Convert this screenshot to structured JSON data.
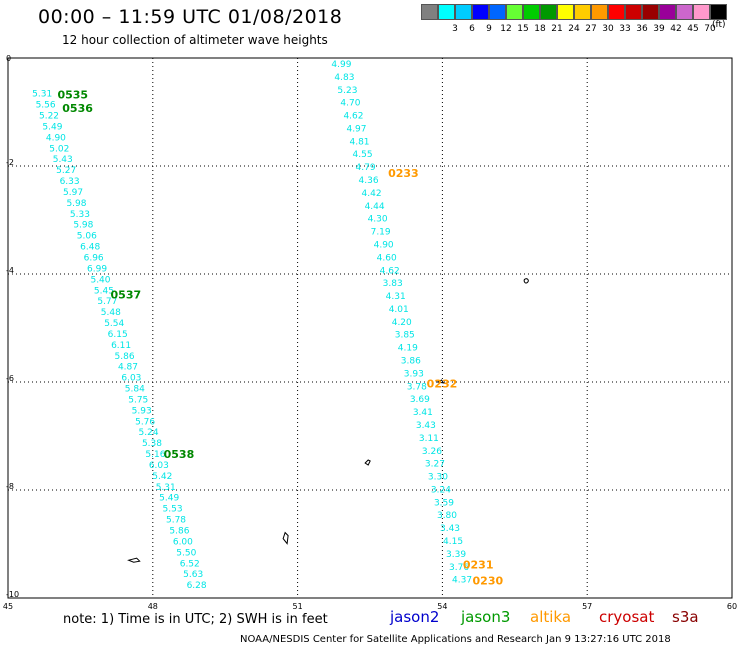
{
  "header": {
    "title": "00:00 – 11:59 UTC 01/08/2018",
    "subtitle": "12 hour collection of altimeter wave heights"
  },
  "legend": {
    "units": "(ft)",
    "colors": [
      "#808080",
      "#00ffff",
      "#00ccff",
      "#0000ff",
      "#0066ff",
      "#66ff33",
      "#00cc00",
      "#009900",
      "#ffff00",
      "#ffcc00",
      "#ff9900",
      "#ff0000",
      "#cc0000",
      "#990000",
      "#990099",
      "#cc66cc",
      "#ff99cc",
      "#000000"
    ],
    "labels": [
      "3",
      "6",
      "9",
      "12",
      "15",
      "18",
      "21",
      "24",
      "27",
      "30",
      "33",
      "36",
      "39",
      "42",
      "45",
      "70"
    ]
  },
  "map": {
    "lon_labels": [
      "45",
      "48",
      "51",
      "54",
      "57",
      "60"
    ],
    "lat_labels": [
      "0",
      "-2",
      "-4",
      "-6",
      "-8",
      "-10"
    ],
    "lon_range": [
      45,
      60
    ],
    "lat_range": [
      0,
      -10
    ],
    "grid": true,
    "tracks": [
      {
        "color": "#00e5e5",
        "label_color": "#008800",
        "start": [
          45.5,
          -0.55
        ],
        "end": [
          48.7,
          -9.65
        ],
        "values": [
          "5.31",
          "5.56",
          "5.22",
          "5.49",
          "4.90",
          "5.02",
          "5.43",
          "5.27",
          "6.33",
          "5.97",
          "5.98",
          "5.33",
          "5.98",
          "5.06",
          "6.48",
          "6.96",
          "6.99",
          "5.40",
          "5.45",
          "5.77",
          "5.48",
          "5.54",
          "6.15",
          "6.11",
          "5.86",
          "4.87",
          "6.03",
          "5.84",
          "5.75",
          "5.93",
          "5.76",
          "5.24",
          "5.38",
          "5.16",
          "6.03",
          "5.42",
          "5.31",
          "5.49",
          "5.53",
          "5.78",
          "5.86",
          "6.00",
          "5.50",
          "6.52",
          "5.63",
          "6.28"
        ],
        "times": [
          {
            "text": "0535",
            "lon": 45.9,
            "lat": -0.55
          },
          {
            "text": "0536",
            "lon": 46.0,
            "lat": -0.8
          },
          {
            "text": "0537",
            "lon": 47.0,
            "lat": -4.25
          },
          {
            "text": "0538",
            "lon": 48.1,
            "lat": -7.2
          }
        ]
      },
      {
        "color": "#00e5e5",
        "label_color": "#ff9900",
        "start": [
          51.7,
          0.0
        ],
        "end": [
          54.2,
          -9.55
        ],
        "values": [
          "4.99",
          "4.83",
          "5.23",
          "4.70",
          "4.62",
          "4.97",
          "4.81",
          "4.55",
          "4.79",
          "4.36",
          "4.42",
          "4.44",
          "4.30",
          "7.19",
          "4.90",
          "4.60",
          "4.62",
          "3.83",
          "4.31",
          "4.01",
          "4.20",
          "3.85",
          "4.19",
          "3.86",
          "3.93",
          "3.78",
          "3.69",
          "3.41",
          "3.43",
          "3.11",
          "3.26",
          "3.27",
          "3.30",
          "3.24",
          "3.59",
          "3.80",
          "3.43",
          "4.15",
          "3.39",
          "3.76",
          "4.37"
        ],
        "times": [
          {
            "text": "0233",
            "lon": 52.75,
            "lat": -2.0
          },
          {
            "text": "0232",
            "lon": 53.55,
            "lat": -5.9
          },
          {
            "text": "0231",
            "lon": 54.3,
            "lat": -9.25
          },
          {
            "text": "0230",
            "lon": 54.5,
            "lat": -9.55
          }
        ]
      }
    ]
  },
  "footer": {
    "note": "note:  1) Time is in UTC;  2) SWH is in feet",
    "satellites": [
      {
        "name": "jason2",
        "color": "#0000cc"
      },
      {
        "name": "jason3",
        "color": "#009900"
      },
      {
        "name": "altika",
        "color": "#ff9900"
      },
      {
        "name": "cryosat",
        "color": "#cc0000"
      },
      {
        "name": "s3a",
        "color": "#880000"
      }
    ],
    "credit": "NOAA/NESDIS Center for Satellite Applications and Research    Jan  9 13:27:16 UTC 2018"
  }
}
